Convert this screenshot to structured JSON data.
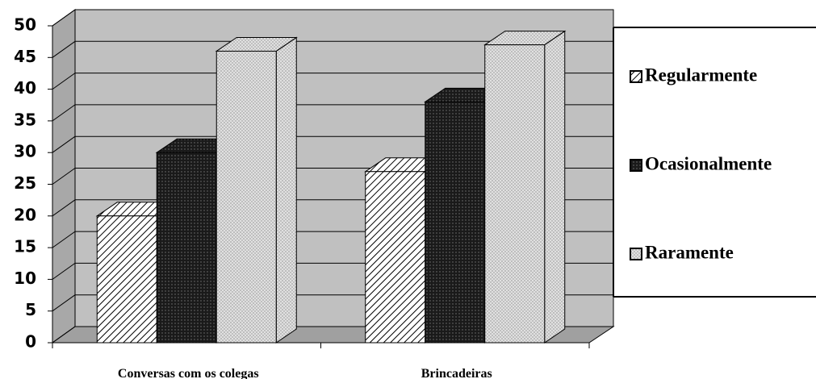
{
  "chart_data": {
    "type": "bar3d",
    "categories": [
      "Conversas com os colegas",
      "Brincadeiras"
    ],
    "series": [
      {
        "name": "Regularmente",
        "color": "#ffffff",
        "values": [
          20,
          27
        ]
      },
      {
        "name": "Ocasionalmente",
        "color": "#1a1a1a",
        "values": [
          30,
          38
        ]
      },
      {
        "name": "Raramente",
        "color": "#e6e6e6",
        "values": [
          46,
          47
        ]
      }
    ],
    "ylim": [
      0,
      50
    ],
    "yticks": [
      0,
      5,
      10,
      15,
      20,
      25,
      30,
      35,
      40,
      45,
      50
    ],
    "grid": true,
    "legend": "right"
  }
}
